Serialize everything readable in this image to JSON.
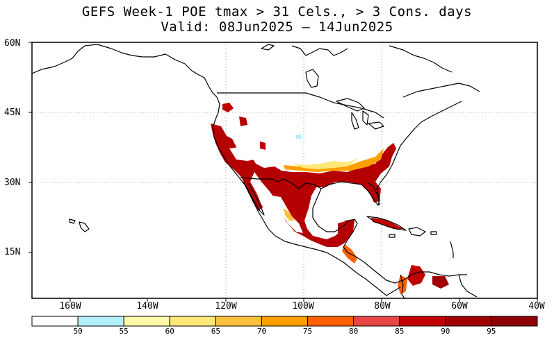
{
  "title_line1": "GEFS Week-1 POE tmax > 31 Cels., > 3 Cons. days",
  "title_line2": "Valid: 08Jun2025 – 14Jun2025",
  "lat_labels": [
    "60N",
    "45N",
    "30N",
    "15N"
  ],
  "lon_labels": [
    "160W",
    "140W",
    "120W",
    "100W",
    "80W",
    "60W",
    "40W"
  ],
  "colorbar": {
    "labels": [
      "50",
      "55",
      "60",
      "65",
      "70",
      "75",
      "80",
      "85",
      "90",
      "95"
    ],
    "colors": [
      "#ffffff",
      "#b4f0fa",
      "#fffaaa",
      "#ffe878",
      "#ffc03c",
      "#ffa000",
      "#ff6000",
      "#e64646",
      "#c00000",
      "#a00000",
      "#8c0000"
    ]
  },
  "map": {
    "region_lon": [
      -170,
      -40
    ],
    "region_lat": [
      5,
      60
    ],
    "shading_color_main": "#b40000",
    "coastline_color": "#000000",
    "gridline_color": "#aaaaaa"
  }
}
